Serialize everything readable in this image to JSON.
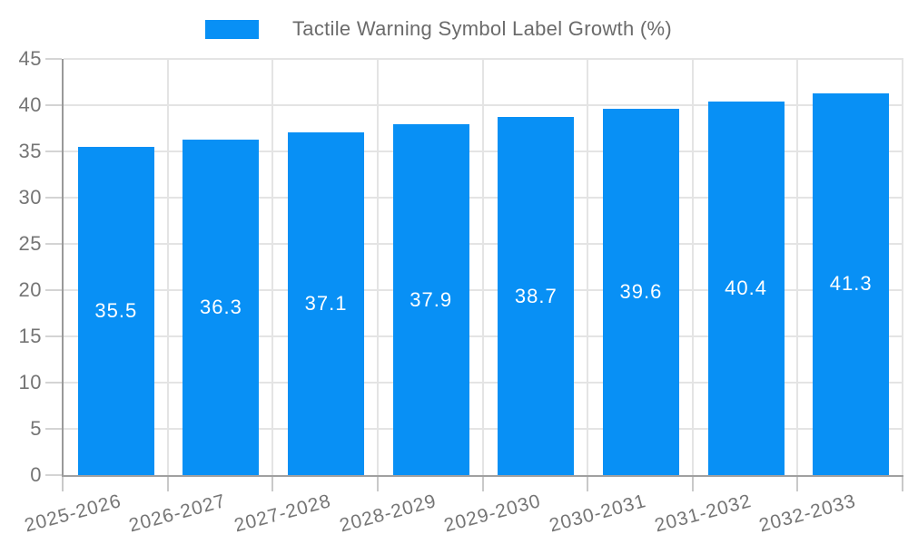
{
  "legend": {
    "label": "Tactile Warning Symbol Label Growth (%)",
    "swatch_color": "#0890f5"
  },
  "chart_data": {
    "type": "bar",
    "title": "Tactile Warning Symbol Label Growth (%)",
    "categories": [
      "2025-2026",
      "2026-2027",
      "2027-2028",
      "2028-2029",
      "2029-2030",
      "2030-2031",
      "2031-2032",
      "2032-2033"
    ],
    "values": [
      35.5,
      36.3,
      37.1,
      37.9,
      38.7,
      39.6,
      40.4,
      41.3
    ],
    "value_labels": [
      "35.5",
      "36.3",
      "37.1",
      "37.9",
      "38.7",
      "39.6",
      "40.4",
      "41.3"
    ],
    "ylim": [
      0,
      45
    ],
    "ytick_step": 5,
    "ytick_labels": [
      "0",
      "5",
      "10",
      "15",
      "20",
      "25",
      "30",
      "35",
      "40",
      "45"
    ],
    "grid": true,
    "legend_position": "top-center",
    "x_label_rotation_deg": -15,
    "value_label_position": "inside-center"
  },
  "colors": {
    "bar": "#0890f5",
    "axis_line": "#999999",
    "gridline": "#e4e4e4",
    "tick": "#d4d4d4",
    "axis_text": "#757575",
    "legend_text": "#6b6b6b",
    "value_label_text": "#ffffff",
    "background": "#ffffff"
  }
}
